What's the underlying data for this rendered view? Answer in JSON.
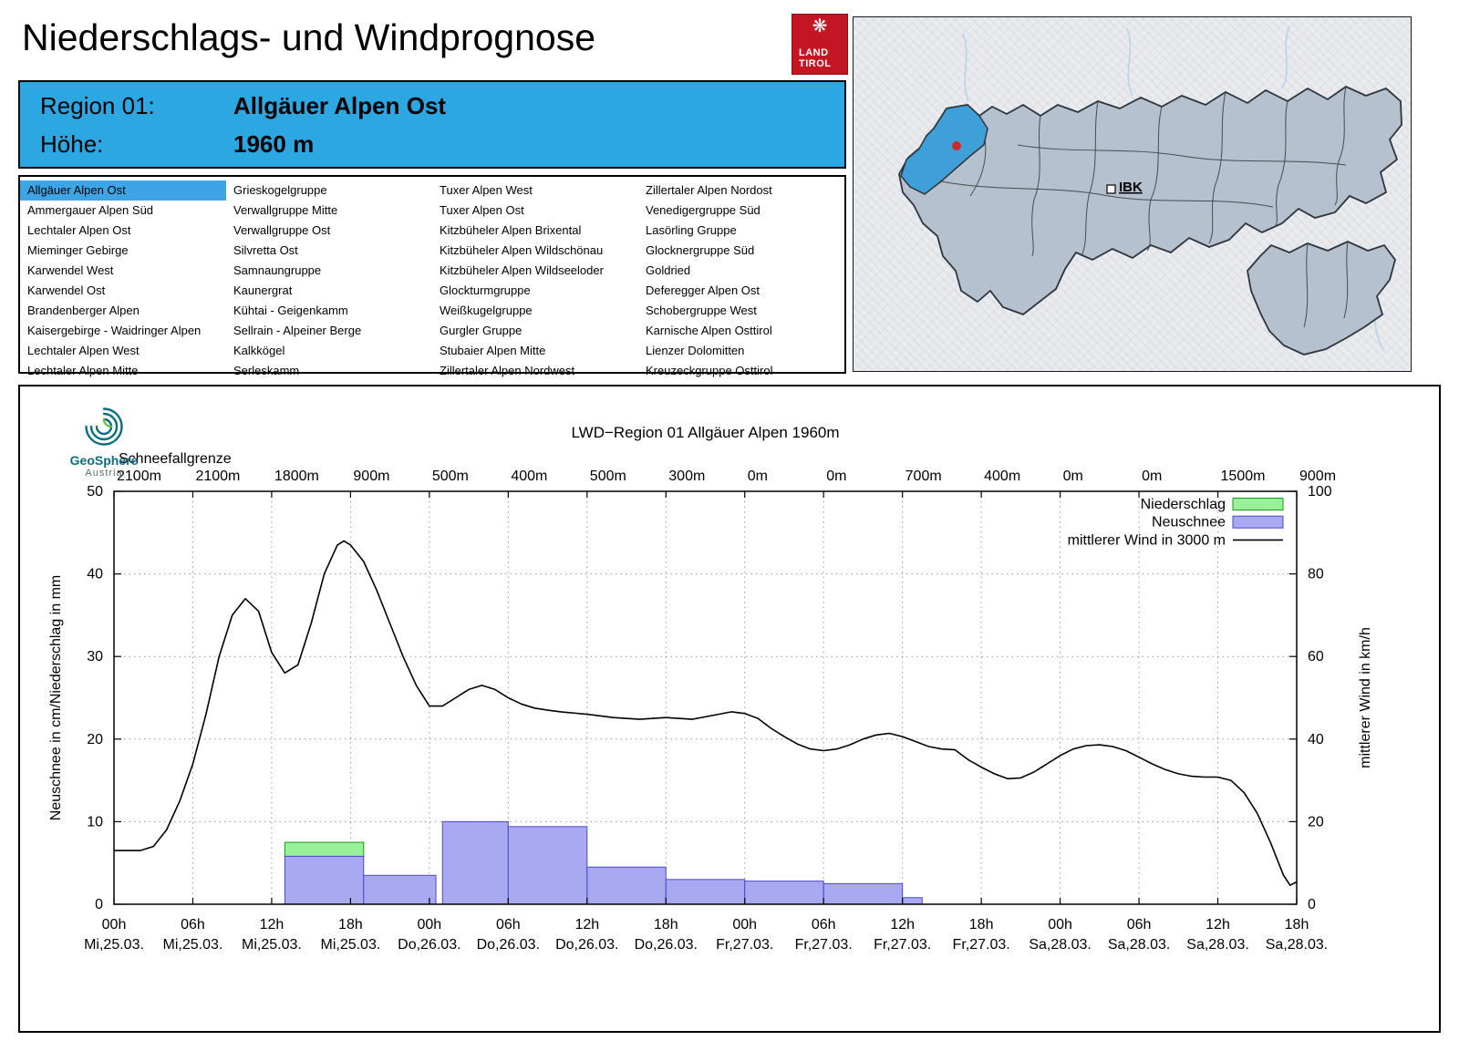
{
  "page": {
    "title": "Niederschlags- und Windprognose"
  },
  "logo": {
    "line1": "LAND",
    "line2": "TIROL"
  },
  "header": {
    "region_label": "Region 01:",
    "region_value": "Allgäuer Alpen Ost",
    "altitude_label": "Höhe:",
    "altitude_value": "1960 m"
  },
  "map": {
    "label_ibk": "IBK"
  },
  "geosphere": {
    "name": "GeoSphere",
    "country": "Austria"
  },
  "region_list": {
    "selected": "Allgäuer Alpen Ost",
    "columns": [
      [
        "Allgäuer Alpen Ost",
        "Ammergauer Alpen Süd",
        "Lechtaler Alpen Ost",
        "Mieminger Gebirge",
        "Karwendel West",
        "Karwendel Ost",
        "Brandenberger Alpen",
        "Kaisergebirge - Waidringer Alpen",
        "Lechtaler Alpen West",
        "Lechtaler Alpen Mitte"
      ],
      [
        "Grieskogelgruppe",
        "Verwallgruppe Mitte",
        "Verwallgruppe Ost",
        "Silvretta Ost",
        "Samnaungruppe",
        "Kaunergrat",
        "Kühtai - Geigenkamm",
        "Sellrain - Alpeiner Berge",
        "Kalkkögel",
        "Serleskamm"
      ],
      [
        "Tuxer Alpen West",
        "Tuxer Alpen Ost",
        "Kitzbüheler Alpen Brixental",
        "Kitzbüheler Alpen Wildschönau",
        "Kitzbüheler Alpen Wildseeloder",
        "Glockturmgruppe",
        "Weißkugelgruppe",
        "Gurgler Gruppe",
        "Stubaier Alpen Mitte",
        "Zillertaler Alpen Nordwest"
      ],
      [
        "Zillertaler Alpen Nordost",
        "Venedigergruppe Süd",
        "Lasörling Gruppe",
        "Glocknergruppe Süd",
        "Goldried",
        "Deferegger Alpen Ost",
        "Schobergruppe West",
        "Karnische Alpen Osttirol",
        "Lienzer Dolomitten",
        "Kreuzeckgruppe Osttirol"
      ]
    ]
  },
  "colors": {
    "accent_blue": "#2ca7e1",
    "selected_blue": "#3da4e6",
    "map_region": "#b5c1ce",
    "map_selected": "#3f9fd8",
    "logo_red": "#c31622"
  },
  "chart_data": {
    "type": "bar",
    "title": "LWD−Region 01 Allgäuer Alpen 1960m",
    "snowline_label": "Schneefallgrenze",
    "snowline_values": [
      "2100m",
      "2100m",
      "1800m",
      "900m",
      "500m",
      "400m",
      "500m",
      "300m",
      "0m",
      "0m",
      "700m",
      "400m",
      "0m",
      "0m",
      "1500m",
      "900m"
    ],
    "ylabel_left": "Neuschnee in cm/Niederschlag in mm",
    "ylabel_right": "mittlerer Wind in km/h",
    "ylim_left": [
      0,
      50
    ],
    "ylim_right": [
      0,
      100
    ],
    "x_hours_total": 90,
    "x_ticks": [
      {
        "time": "00h",
        "date": "Mi,25.03."
      },
      {
        "time": "06h",
        "date": "Mi,25.03."
      },
      {
        "time": "12h",
        "date": "Mi,25.03."
      },
      {
        "time": "18h",
        "date": "Mi,25.03."
      },
      {
        "time": "00h",
        "date": "Do,26.03."
      },
      {
        "time": "06h",
        "date": "Do,26.03."
      },
      {
        "time": "12h",
        "date": "Do,26.03."
      },
      {
        "time": "18h",
        "date": "Do,26.03."
      },
      {
        "time": "00h",
        "date": "Fr,27.03."
      },
      {
        "time": "06h",
        "date": "Fr,27.03."
      },
      {
        "time": "12h",
        "date": "Fr,27.03."
      },
      {
        "time": "18h",
        "date": "Fr,27.03."
      },
      {
        "time": "00h",
        "date": "Sa,28.03."
      },
      {
        "time": "06h",
        "date": "Sa,28.03."
      },
      {
        "time": "12h",
        "date": "Sa,28.03."
      },
      {
        "time": "18h",
        "date": "Sa,28.03."
      }
    ],
    "legend": [
      {
        "label": "Niederschlag",
        "type": "box",
        "color": "#98f098",
        "border": "#12a012"
      },
      {
        "label": "Neuschnee",
        "type": "box",
        "color": "#a9a9f2",
        "border": "#4949c8"
      },
      {
        "label": "mittlerer Wind in 3000 m",
        "type": "line",
        "color": "#000000"
      }
    ],
    "bars": [
      {
        "start_h": 13,
        "end_h": 19,
        "neuschnee_cm": 5.8,
        "niederschlag_mm": 7.5
      },
      {
        "start_h": 19,
        "end_h": 24.5,
        "neuschnee_cm": 3.5,
        "niederschlag_mm": 3.5
      },
      {
        "start_h": 25,
        "end_h": 30,
        "neuschnee_cm": 10.0,
        "niederschlag_mm": 10.0
      },
      {
        "start_h": 30,
        "end_h": 36,
        "neuschnee_cm": 9.4,
        "niederschlag_mm": 9.4
      },
      {
        "start_h": 36,
        "end_h": 42,
        "neuschnee_cm": 4.5,
        "niederschlag_mm": 4.5
      },
      {
        "start_h": 42,
        "end_h": 48,
        "neuschnee_cm": 3.0,
        "niederschlag_mm": 3.0
      },
      {
        "start_h": 48,
        "end_h": 54,
        "neuschnee_cm": 2.8,
        "niederschlag_mm": 2.8
      },
      {
        "start_h": 54,
        "end_h": 60,
        "neuschnee_cm": 2.5,
        "niederschlag_mm": 2.5
      },
      {
        "start_h": 60,
        "end_h": 61.5,
        "neuschnee_cm": 0.8,
        "niederschlag_mm": 0.8
      }
    ],
    "wind_kmh": [
      [
        0,
        13
      ],
      [
        1,
        13
      ],
      [
        2,
        13
      ],
      [
        3,
        14
      ],
      [
        4,
        18
      ],
      [
        5,
        25
      ],
      [
        6,
        34
      ],
      [
        7,
        46
      ],
      [
        8,
        60
      ],
      [
        9,
        70
      ],
      [
        10,
        74
      ],
      [
        11,
        71
      ],
      [
        12,
        61
      ],
      [
        13,
        56
      ],
      [
        14,
        58
      ],
      [
        15,
        68
      ],
      [
        16,
        80
      ],
      [
        17,
        87
      ],
      [
        17.5,
        88
      ],
      [
        18,
        87
      ],
      [
        19,
        83
      ],
      [
        20,
        76
      ],
      [
        21,
        68
      ],
      [
        22,
        60
      ],
      [
        23,
        53
      ],
      [
        24,
        48
      ],
      [
        25,
        48
      ],
      [
        26,
        50
      ],
      [
        27,
        52
      ],
      [
        28,
        53
      ],
      [
        29,
        52
      ],
      [
        30,
        50
      ],
      [
        31,
        48.5
      ],
      [
        32,
        47.5
      ],
      [
        33,
        47
      ],
      [
        34,
        46.6
      ],
      [
        36,
        46
      ],
      [
        38,
        45.2
      ],
      [
        40,
        44.8
      ],
      [
        42,
        45.2
      ],
      [
        44,
        44.8
      ],
      [
        46,
        46
      ],
      [
        47,
        46.6
      ],
      [
        48,
        46.2
      ],
      [
        49,
        45
      ],
      [
        50,
        42.6
      ],
      [
        51,
        40.6
      ],
      [
        52,
        38.8
      ],
      [
        53,
        37.6
      ],
      [
        54,
        37.2
      ],
      [
        55,
        37.6
      ],
      [
        56,
        38.6
      ],
      [
        57,
        40
      ],
      [
        58,
        41
      ],
      [
        59,
        41.4
      ],
      [
        60,
        40.6
      ],
      [
        61,
        39.4
      ],
      [
        62,
        38.2
      ],
      [
        63,
        37.6
      ],
      [
        64,
        37.4
      ],
      [
        65,
        35
      ],
      [
        66,
        33.2
      ],
      [
        67,
        31.6
      ],
      [
        68,
        30.4
      ],
      [
        69,
        30.6
      ],
      [
        70,
        32
      ],
      [
        71,
        34
      ],
      [
        72,
        36
      ],
      [
        73,
        37.6
      ],
      [
        74,
        38.4
      ],
      [
        75,
        38.6
      ],
      [
        76,
        38.2
      ],
      [
        77,
        37.2
      ],
      [
        78,
        35.6
      ],
      [
        79,
        34
      ],
      [
        80,
        32.6
      ],
      [
        81,
        31.6
      ],
      [
        82,
        31
      ],
      [
        83,
        30.8
      ],
      [
        84,
        30.8
      ],
      [
        85,
        30
      ],
      [
        86,
        27
      ],
      [
        87,
        22
      ],
      [
        88,
        15
      ],
      [
        89,
        7
      ],
      [
        89.5,
        4.6
      ],
      [
        90,
        5.4
      ]
    ]
  }
}
